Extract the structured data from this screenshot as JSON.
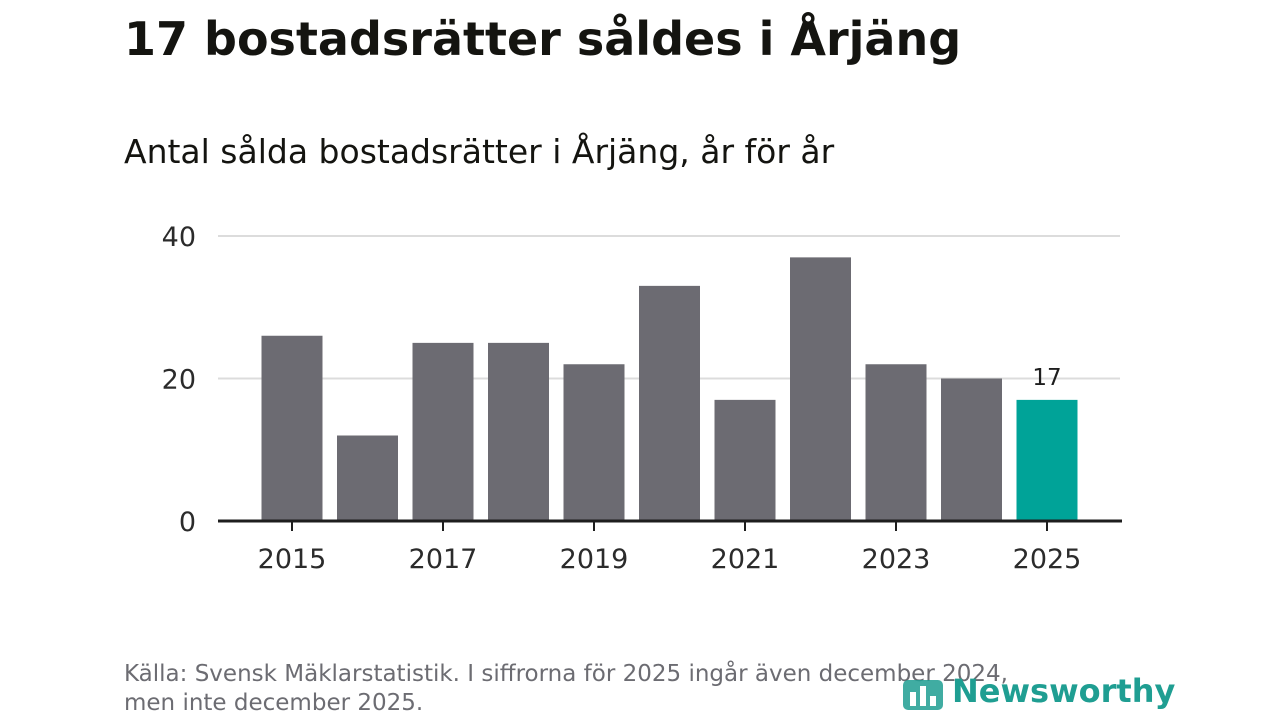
{
  "headline": "17 bostadsrätter såldes i Årjäng",
  "subtitle": "Antal sålda bostadsrätter i Årjäng, år för år",
  "chart_data": {
    "type": "bar",
    "categories": [
      "2015",
      "2016",
      "2017",
      "2018",
      "2019",
      "2020",
      "2021",
      "2022",
      "2023",
      "2024",
      "2025"
    ],
    "values": [
      26,
      12,
      25,
      25,
      22,
      33,
      17,
      37,
      22,
      20,
      17
    ],
    "xtick_labels": [
      "2015",
      "2017",
      "2019",
      "2021",
      "2023",
      "2025"
    ],
    "yticks": [
      0,
      20,
      40
    ],
    "ylim": [
      0,
      40
    ],
    "grid": true,
    "highlight_category": "2025",
    "highlight_label": "17",
    "colors": {
      "bar": "#6c6b72",
      "highlight": "#00a398",
      "grid": "#dcdcdc",
      "axis": "#1e1e1e"
    }
  },
  "footer": {
    "line1": "Källa: Svensk Mäklarstatistik. I siffrorna för 2025 ingår även december 2024,",
    "line2": "men inte december 2025."
  },
  "logo": {
    "text": "Newsworthy",
    "icon": "bar-chart-logo-icon",
    "color": "#1f9e92"
  }
}
